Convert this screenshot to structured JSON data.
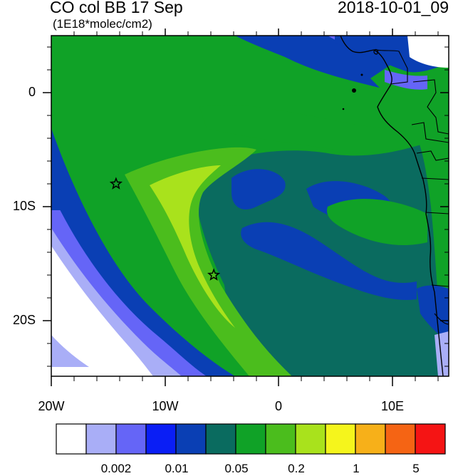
{
  "title": "CO col BB 17 Sep",
  "units": "(1E18*molec/cm2)",
  "datetime": "2018-10-01_09",
  "map": {
    "y_ticks": [
      "0",
      "10S",
      "20S"
    ],
    "x_ticks": [
      "20W",
      "10W",
      "0",
      "10E"
    ],
    "markers": [
      {
        "name": "star",
        "lon": -14.3,
        "lat": -8.0
      },
      {
        "name": "star",
        "lon": -5.7,
        "lat": -16.0
      }
    ]
  },
  "colorbar": {
    "colors": [
      "#ffffff",
      "#a9aef7",
      "#6565f7",
      "#0a1ef5",
      "#0a3fb4",
      "#0a6b5f",
      "#10a227",
      "#4bbd1d",
      "#a9e21c",
      "#f5f51c",
      "#f7b019",
      "#f56414",
      "#f51414"
    ],
    "labels": [
      "0.002",
      "0.01",
      "0.05",
      "0.2",
      "1",
      "5"
    ]
  },
  "palette": {
    "white": "#ffffff",
    "lavender": "#a9aef7",
    "light_blue": "#6565f7",
    "blue": "#0a1ef5",
    "dark_blue": "#0a3fb4",
    "teal": "#0a6b5f",
    "green": "#10a227",
    "light_green": "#4bbd1d",
    "yellow_green": "#a9e21c"
  }
}
